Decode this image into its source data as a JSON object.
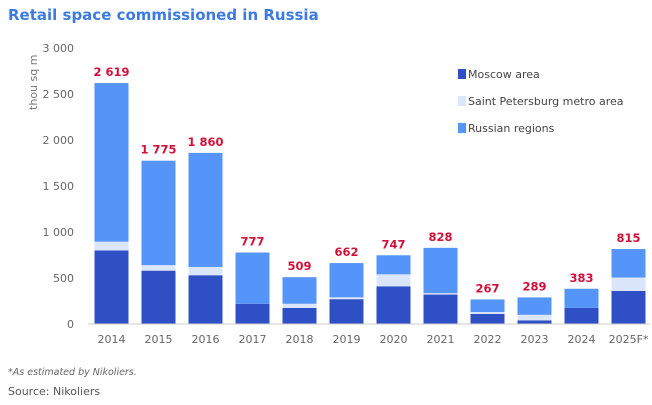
{
  "chart_data": {
    "type": "bar",
    "stacked": true,
    "title": "Retail space commissioned in Russia",
    "ylabel": "thou sq m",
    "ylim": [
      0,
      3000
    ],
    "yticks": [
      "0",
      "500",
      "1 000",
      "1 500",
      "2 000",
      "2 500",
      "3 000"
    ],
    "ytick_values": [
      0,
      500,
      1000,
      1500,
      2000,
      2500,
      3000
    ],
    "categories": [
      "2014",
      "2015",
      "2016",
      "2017",
      "2018",
      "2019",
      "2020",
      "2021",
      "2022",
      "2023",
      "2024",
      "2025F*"
    ],
    "series": [
      {
        "name": "Moscow area",
        "color": "#2f4fc4",
        "values": [
          800,
          580,
          530,
          220,
          175,
          270,
          410,
          320,
          110,
          40,
          175,
          360
        ]
      },
      {
        "name": "Saint Petersburg metro area",
        "color": "#dbe6fb",
        "values": [
          95,
          60,
          90,
          0,
          45,
          20,
          130,
          15,
          20,
          60,
          0,
          145
        ]
      },
      {
        "name": "Russian regions",
        "color": "#5594f8",
        "values": [
          1724,
          1135,
          1240,
          557,
          289,
          372,
          207,
          493,
          137,
          189,
          208,
          310
        ]
      }
    ],
    "totals": [
      "2 619",
      "1 775",
      "1 860",
      "777",
      "509",
      "662",
      "747",
      "828",
      "267",
      "289",
      "383",
      "815"
    ],
    "legend_position": "top-right",
    "grid": false
  },
  "footnote": "*As estimated by Nikoliers.",
  "source": "Source: Nikoliers"
}
